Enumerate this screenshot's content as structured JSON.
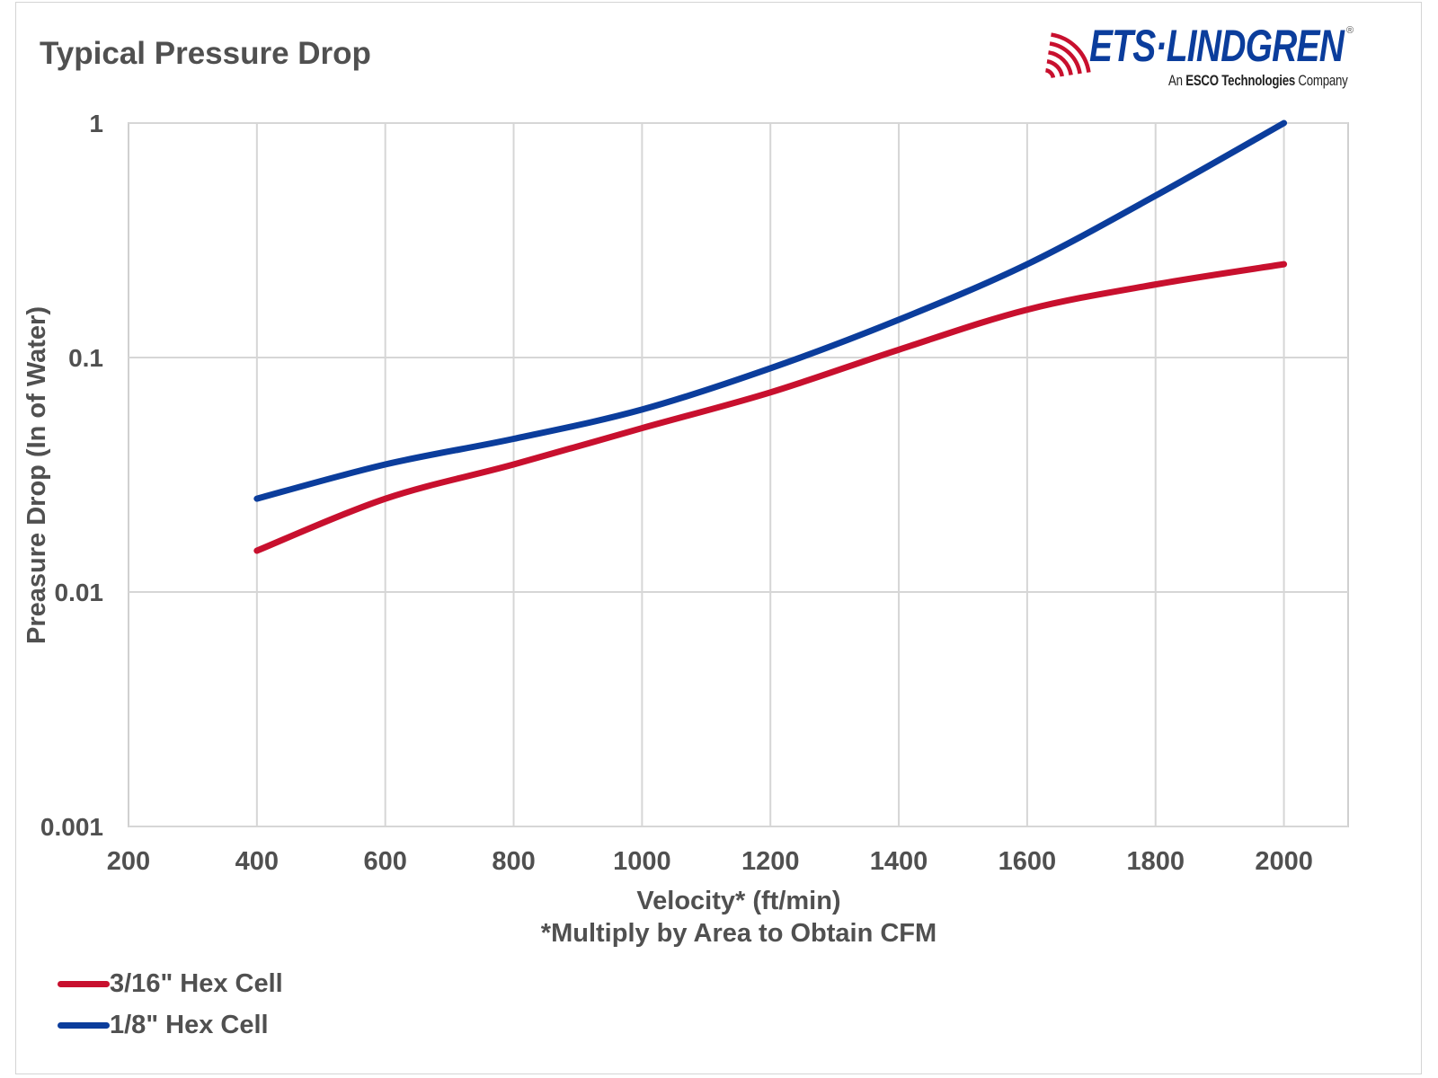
{
  "chart_data": {
    "type": "line",
    "title": "Typical Pressure Drop",
    "xlabel": "Velocity* (ft/min)",
    "xlabel_note": "*Multiply by Area to Obtain CFM",
    "ylabel": "Preasure Drop (In of Water)",
    "yscale": "log",
    "xlim": [
      200,
      2100
    ],
    "ylim": [
      0.001,
      1
    ],
    "x_ticks": [
      200,
      400,
      600,
      800,
      1000,
      1200,
      1400,
      1600,
      1800,
      2000
    ],
    "x_tick_labels": [
      "200",
      "400",
      "600",
      "800",
      "1000",
      "1200",
      "1400",
      "1600",
      "1800",
      "2000"
    ],
    "y_ticks": [
      1,
      0.1,
      0.01,
      0.001
    ],
    "y_tick_labels": [
      "1",
      "0.1",
      "0.01",
      "0.001"
    ],
    "grid": true,
    "legend_position": "bottom-left",
    "x": [
      400,
      600,
      800,
      1000,
      1200,
      1400,
      1600,
      1800,
      2000
    ],
    "series": [
      {
        "name": "3/16\" Hex Cell",
        "color": "#c8102e",
        "values": [
          0.015,
          0.025,
          0.035,
          0.05,
          0.071,
          0.108,
          0.16,
          0.205,
          0.25
        ]
      },
      {
        "name": "1/8\" Hex Cell",
        "color": "#0b3d9c",
        "values": [
          0.025,
          0.035,
          0.045,
          0.06,
          0.09,
          0.145,
          0.25,
          0.49,
          1.0
        ]
      }
    ]
  },
  "logo": {
    "brand": "ETS·LINDGREN",
    "registered": "®",
    "tagline_prefix": "An ",
    "tagline_bold": "ESCO Technologies",
    "tagline_suffix": " Company",
    "wave_color": "#c8102e",
    "text_color": "#0b3d9c"
  }
}
